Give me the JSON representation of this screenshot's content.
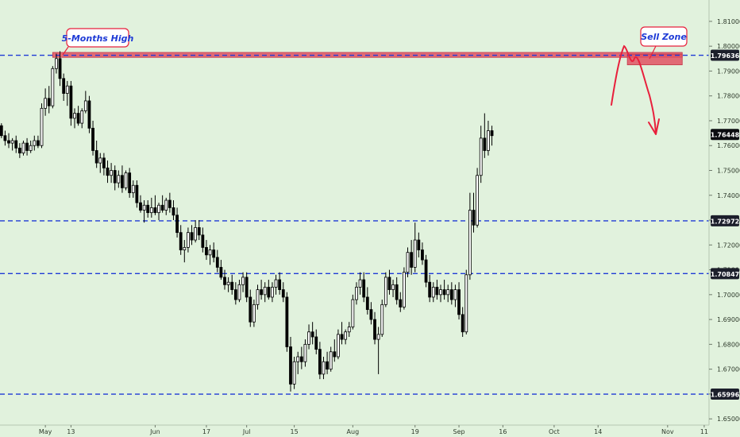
{
  "chart_data": {
    "type": "candlestick",
    "title": "",
    "y_ticks": [
      "1.81000",
      "1.80000",
      "1.79000",
      "1.78000",
      "1.77000",
      "1.76000",
      "1.75000",
      "1.74000",
      "1.73000",
      "1.72000",
      "1.71000",
      "1.70000",
      "1.69000",
      "1.68000",
      "1.67000",
      "1.66000",
      "1.65000"
    ],
    "y_tick_values": [
      1.81,
      1.8,
      1.79,
      1.78,
      1.77,
      1.76,
      1.75,
      1.74,
      1.73,
      1.72,
      1.71,
      1.7,
      1.69,
      1.68,
      1.67,
      1.66,
      1.65
    ],
    "ylim": [
      1.6427,
      1.8186
    ],
    "x_ticks": [
      {
        "label": "May",
        "bar": 12
      },
      {
        "label": "13",
        "bar": 19
      },
      {
        "label": "Jun",
        "bar": 42
      },
      {
        "label": "17",
        "bar": 56
      },
      {
        "label": "Jul",
        "bar": 67
      },
      {
        "label": "15",
        "bar": 80
      },
      {
        "label": "Aug",
        "bar": 96
      },
      {
        "label": "19",
        "bar": 113
      },
      {
        "label": "Sep",
        "bar": 125
      },
      {
        "label": "16",
        "bar": 137
      },
      {
        "label": "Oct",
        "bar": 151
      },
      {
        "label": "14",
        "bar": 163
      },
      {
        "label": "Nov",
        "bar": 182
      },
      {
        "label": "11",
        "bar": 192
      }
    ],
    "price_levels": [
      {
        "label": "1.79636",
        "value": 1.79636,
        "color": "#1f3bd6"
      },
      {
        "label": "1.72972",
        "value": 1.72972,
        "color": "#1f3bd6"
      },
      {
        "label": "1.70847",
        "value": 1.70847,
        "color": "#1f3bd6"
      },
      {
        "label": "1.65996",
        "value": 1.65996,
        "color": "#1f3bd6"
      }
    ],
    "last_price": {
      "label": "1.76448",
      "value": 1.76448
    },
    "annotations": [
      {
        "text": "5-Months High",
        "near_bar": 19,
        "value": 1.8034
      },
      {
        "text": "Sell Zone",
        "near_bar": 185,
        "value": 1.805
      }
    ],
    "zones": [
      {
        "name": "5-months-high-band",
        "bar_start": 14,
        "bar_end": 186,
        "top": 1.7975,
        "bottom": 1.7955,
        "color": "#e05263"
      },
      {
        "name": "sell-zone-box",
        "bar_start": 171,
        "bar_end": 186,
        "top": 1.7968,
        "bottom": 1.7925,
        "color": "#e05263"
      }
    ],
    "colors": {
      "background": "#e1f2dd",
      "level_line": "#1f3bd6",
      "sell_zone": "#e05263",
      "arrow": "#e8203c",
      "annotation_border": "#e8203c",
      "annotation_text": "#1f3bd6"
    },
    "candles": [
      [
        1.768,
        1.769,
        1.763,
        1.764
      ],
      [
        1.764,
        1.766,
        1.76,
        1.762
      ],
      [
        1.762,
        1.765,
        1.759,
        1.761
      ],
      [
        1.761,
        1.763,
        1.758,
        1.762
      ],
      [
        1.762,
        1.764,
        1.757,
        1.759
      ],
      [
        1.759,
        1.761,
        1.755,
        1.757
      ],
      [
        1.757,
        1.762,
        1.756,
        1.761
      ],
      [
        1.761,
        1.763,
        1.756,
        1.758
      ],
      [
        1.758,
        1.762,
        1.757,
        1.76
      ],
      [
        1.76,
        1.764,
        1.758,
        1.762
      ],
      [
        1.762,
        1.764,
        1.759,
        1.76
      ],
      [
        1.76,
        1.777,
        1.759,
        1.775
      ],
      [
        1.775,
        1.783,
        1.772,
        1.779
      ],
      [
        1.779,
        1.784,
        1.773,
        1.776
      ],
      [
        1.776,
        1.792,
        1.775,
        1.791
      ],
      [
        1.791,
        1.797,
        1.789,
        1.795
      ],
      [
        1.795,
        1.798,
        1.784,
        1.787
      ],
      [
        1.787,
        1.789,
        1.778,
        1.781
      ],
      [
        1.781,
        1.786,
        1.776,
        1.784
      ],
      [
        1.784,
        1.786,
        1.768,
        1.771
      ],
      [
        1.771,
        1.775,
        1.767,
        1.773
      ],
      [
        1.773,
        1.776,
        1.768,
        1.769
      ],
      [
        1.769,
        1.775,
        1.767,
        1.774
      ],
      [
        1.774,
        1.782,
        1.773,
        1.778
      ],
      [
        1.778,
        1.78,
        1.765,
        1.767
      ],
      [
        1.767,
        1.77,
        1.756,
        1.758
      ],
      [
        1.758,
        1.762,
        1.751,
        1.753
      ],
      [
        1.753,
        1.757,
        1.749,
        1.755
      ],
      [
        1.755,
        1.757,
        1.748,
        1.751
      ],
      [
        1.751,
        1.754,
        1.745,
        1.748
      ],
      [
        1.748,
        1.753,
        1.745,
        1.75
      ],
      [
        1.75,
        1.752,
        1.742,
        1.745
      ],
      [
        1.745,
        1.75,
        1.743,
        1.748
      ],
      [
        1.748,
        1.752,
        1.741,
        1.743
      ],
      [
        1.743,
        1.75,
        1.742,
        1.749
      ],
      [
        1.749,
        1.751,
        1.739,
        1.741
      ],
      [
        1.741,
        1.746,
        1.739,
        1.744
      ],
      [
        1.744,
        1.746,
        1.735,
        1.737
      ],
      [
        1.737,
        1.74,
        1.733,
        1.734
      ],
      [
        1.734,
        1.738,
        1.729,
        1.736
      ],
      [
        1.736,
        1.738,
        1.731,
        1.733
      ],
      [
        1.733,
        1.739,
        1.731,
        1.735
      ],
      [
        1.735,
        1.74,
        1.732,
        1.733
      ],
      [
        1.733,
        1.737,
        1.73,
        1.736
      ],
      [
        1.736,
        1.74,
        1.733,
        1.734
      ],
      [
        1.734,
        1.739,
        1.732,
        1.738
      ],
      [
        1.738,
        1.741,
        1.733,
        1.735
      ],
      [
        1.735,
        1.738,
        1.73,
        1.732
      ],
      [
        1.732,
        1.735,
        1.723,
        1.725
      ],
      [
        1.725,
        1.728,
        1.716,
        1.718
      ],
      [
        1.718,
        1.722,
        1.713,
        1.719
      ],
      [
        1.719,
        1.727,
        1.717,
        1.725
      ],
      [
        1.725,
        1.728,
        1.72,
        1.722
      ],
      [
        1.722,
        1.73,
        1.721,
        1.727
      ],
      [
        1.727,
        1.73,
        1.722,
        1.724
      ],
      [
        1.724,
        1.727,
        1.717,
        1.719
      ],
      [
        1.719,
        1.722,
        1.714,
        1.716
      ],
      [
        1.716,
        1.72,
        1.712,
        1.718
      ],
      [
        1.718,
        1.721,
        1.713,
        1.715
      ],
      [
        1.715,
        1.718,
        1.709,
        1.711
      ],
      [
        1.711,
        1.714,
        1.706,
        1.707
      ],
      [
        1.707,
        1.71,
        1.702,
        1.704
      ],
      [
        1.704,
        1.707,
        1.701,
        1.705
      ],
      [
        1.705,
        1.708,
        1.7,
        1.702
      ],
      [
        1.702,
        1.705,
        1.696,
        1.698
      ],
      [
        1.698,
        1.706,
        1.697,
        1.704
      ],
      [
        1.704,
        1.709,
        1.701,
        1.707
      ],
      [
        1.707,
        1.709,
        1.697,
        1.699
      ],
      [
        1.699,
        1.702,
        1.687,
        1.689
      ],
      [
        1.689,
        1.698,
        1.687,
        1.696
      ],
      [
        1.696,
        1.704,
        1.694,
        1.702
      ],
      [
        1.702,
        1.706,
        1.698,
        1.7
      ],
      [
        1.7,
        1.705,
        1.697,
        1.703
      ],
      [
        1.703,
        1.706,
        1.698,
        1.699
      ],
      [
        1.699,
        1.705,
        1.697,
        1.703
      ],
      [
        1.703,
        1.708,
        1.7,
        1.706
      ],
      [
        1.706,
        1.709,
        1.7,
        1.702
      ],
      [
        1.702,
        1.705,
        1.697,
        1.699
      ],
      [
        1.699,
        1.701,
        1.677,
        1.679
      ],
      [
        1.679,
        1.683,
        1.661,
        1.664
      ],
      [
        1.664,
        1.675,
        1.662,
        1.673
      ],
      [
        1.673,
        1.677,
        1.668,
        1.675
      ],
      [
        1.675,
        1.679,
        1.67,
        1.673
      ],
      [
        1.673,
        1.682,
        1.671,
        1.68
      ],
      [
        1.68,
        1.688,
        1.678,
        1.685
      ],
      [
        1.685,
        1.689,
        1.68,
        1.683
      ],
      [
        1.683,
        1.686,
        1.676,
        1.678
      ],
      [
        1.678,
        1.681,
        1.666,
        1.668
      ],
      [
        1.668,
        1.675,
        1.666,
        1.673
      ],
      [
        1.673,
        1.677,
        1.668,
        1.67
      ],
      [
        1.67,
        1.679,
        1.669,
        1.677
      ],
      [
        1.677,
        1.682,
        1.673,
        1.675
      ],
      [
        1.675,
        1.686,
        1.674,
        1.684
      ],
      [
        1.684,
        1.689,
        1.68,
        1.682
      ],
      [
        1.682,
        1.686,
        1.68,
        1.685
      ],
      [
        1.685,
        1.689,
        1.683,
        1.687
      ],
      [
        1.687,
        1.7,
        1.686,
        1.698
      ],
      [
        1.698,
        1.705,
        1.696,
        1.703
      ],
      [
        1.703,
        1.709,
        1.7,
        1.706
      ],
      [
        1.706,
        1.709,
        1.697,
        1.699
      ],
      [
        1.699,
        1.703,
        1.692,
        1.694
      ],
      [
        1.694,
        1.697,
        1.688,
        1.69
      ],
      [
        1.69,
        1.693,
        1.68,
        1.682
      ],
      [
        1.682,
        1.687,
        1.668,
        1.684
      ],
      [
        1.684,
        1.698,
        1.683,
        1.696
      ],
      [
        1.696,
        1.709,
        1.695,
        1.707
      ],
      [
        1.707,
        1.71,
        1.7,
        1.702
      ],
      [
        1.702,
        1.706,
        1.699,
        1.704
      ],
      [
        1.704,
        1.707,
        1.696,
        1.698
      ],
      [
        1.698,
        1.701,
        1.693,
        1.695
      ],
      [
        1.695,
        1.711,
        1.694,
        1.709
      ],
      [
        1.709,
        1.719,
        1.707,
        1.717
      ],
      [
        1.717,
        1.722,
        1.708,
        1.711
      ],
      [
        1.711,
        1.729,
        1.709,
        1.722
      ],
      [
        1.722,
        1.725,
        1.715,
        1.718
      ],
      [
        1.718,
        1.721,
        1.712,
        1.714
      ],
      [
        1.714,
        1.716,
        1.703,
        1.705
      ],
      [
        1.705,
        1.708,
        1.697,
        1.699
      ],
      [
        1.699,
        1.705,
        1.697,
        1.703
      ],
      [
        1.703,
        1.706,
        1.698,
        1.7
      ],
      [
        1.7,
        1.704,
        1.697,
        1.702
      ],
      [
        1.702,
        1.706,
        1.698,
        1.7
      ],
      [
        1.7,
        1.704,
        1.697,
        1.702
      ],
      [
        1.702,
        1.705,
        1.696,
        1.698
      ],
      [
        1.698,
        1.704,
        1.695,
        1.702
      ],
      [
        1.702,
        1.705,
        1.69,
        1.692
      ],
      [
        1.692,
        1.695,
        1.683,
        1.685
      ],
      [
        1.685,
        1.71,
        1.684,
        1.708
      ],
      [
        1.708,
        1.741,
        1.706,
        1.734
      ],
      [
        1.734,
        1.741,
        1.725,
        1.728
      ],
      [
        1.728,
        1.751,
        1.727,
        1.748
      ],
      [
        1.748,
        1.768,
        1.745,
        1.763
      ],
      [
        1.763,
        1.773,
        1.755,
        1.758
      ],
      [
        1.758,
        1.77,
        1.756,
        1.766
      ],
      [
        1.766,
        1.768,
        1.76,
        1.764
      ]
    ],
    "first_candle_bar": 0
  }
}
